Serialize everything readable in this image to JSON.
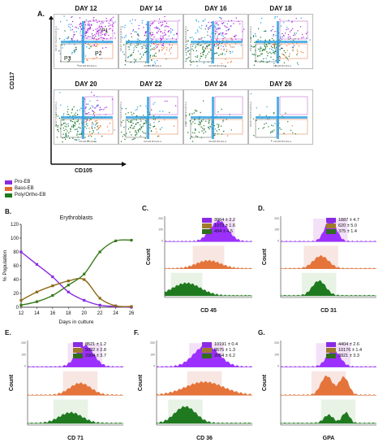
{
  "panelA": {
    "label": "A.",
    "days": [
      "DAY 12",
      "DAY 14",
      "DAY 16",
      "DAY 18",
      "DAY 20",
      "DAY 22",
      "DAY 24",
      "DAY 26"
    ],
    "gates": {
      "p1": "P1",
      "p2": "P2",
      "p3": "P3"
    },
    "y_axis": "CD117",
    "x_axis": "CD105",
    "inner_x": "CD105 BV421-A",
    "inner_y": "CD117 PerCP-Cy5-5-A"
  },
  "legend": {
    "items": [
      {
        "label": "Pro-EB",
        "color": "#8a2be2"
      },
      {
        "label": "Baso-EB",
        "color": "#e8692e"
      },
      {
        "label": "Poly/Ortho-EB",
        "color": "#1d7a1d"
      }
    ]
  },
  "panelB": {
    "label": "B."
  },
  "panelC": {
    "label": "C.",
    "xlabel": "CD 45",
    "ylabel": "Count",
    "values": [
      "3964 ± 2.2",
      "1073 ± 1.6",
      "494 ± 4.5"
    ]
  },
  "panelD": {
    "label": "D.",
    "xlabel": "CD 31",
    "ylabel": "Count",
    "values": [
      "1887 ± 4.7",
      "620 ± 5.0",
      "375 ± 1.4"
    ]
  },
  "panelE": {
    "label": "E.",
    "xlabel": "CD 71",
    "ylabel": "Count",
    "values": [
      "8521 ± 1.2",
      "5032 ± 2.8",
      "2304 ± 3.7"
    ]
  },
  "panelF": {
    "label": "F.",
    "xlabel": "CD 36",
    "ylabel": "Count",
    "values": [
      "10191 ± 0.4",
      "8675 ± 1.3",
      "2054 ± 6.2"
    ]
  },
  "panelG": {
    "label": "G.",
    "xlabel": "GPA",
    "ylabel": "Count",
    "values": [
      "4404 ± 2.6",
      "10176 ± 1.4",
      "3921 ± 3.3"
    ]
  },
  "chart_data": {
    "type": "line",
    "title": "Erythroblasts",
    "xlabel": "Days in culture",
    "ylabel": "% Population",
    "x": [
      12,
      14,
      16,
      18,
      20,
      22,
      24,
      26
    ],
    "xticks": [
      "12",
      "14",
      "16",
      "18",
      "20",
      "22",
      "24",
      "26"
    ],
    "yticks": [
      "0",
      "20",
      "40",
      "60",
      "80",
      "100",
      "120"
    ],
    "ylim": [
      0,
      120
    ],
    "grid": false,
    "series": [
      {
        "name": "Pro-EB",
        "color": "#8a2be2",
        "values": [
          80,
          62,
          44,
          22,
          10,
          3,
          1,
          0
        ]
      },
      {
        "name": "Baso-EB",
        "color": "#8b6a14",
        "values": [
          10,
          22,
          31,
          38,
          40,
          13,
          2,
          1
        ]
      },
      {
        "name": "Poly/Ortho-EB",
        "color": "#3a7a1d",
        "values": [
          3,
          8,
          17,
          32,
          48,
          80,
          96,
          97
        ]
      }
    ]
  }
}
